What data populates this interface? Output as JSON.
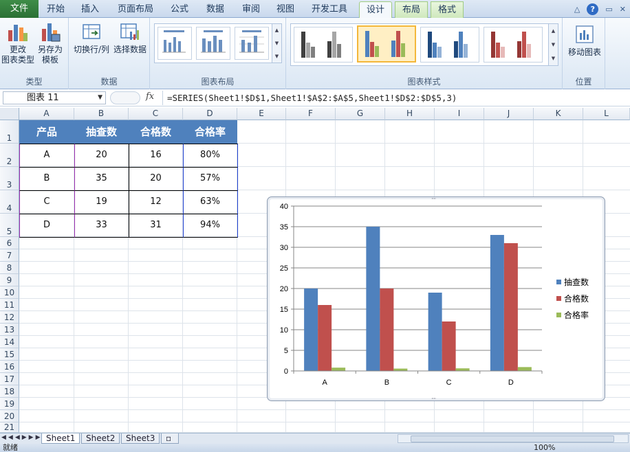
{
  "tabs": [
    {
      "label": "文件",
      "name": "tab-file"
    },
    {
      "label": "开始",
      "name": "tab-home"
    },
    {
      "label": "插入",
      "name": "tab-insert"
    },
    {
      "label": "页面布局",
      "name": "tab-page-layout"
    },
    {
      "label": "公式",
      "name": "tab-formulas"
    },
    {
      "label": "数据",
      "name": "tab-data"
    },
    {
      "label": "审阅",
      "name": "tab-review"
    },
    {
      "label": "视图",
      "name": "tab-view"
    },
    {
      "label": "开发工具",
      "name": "tab-developer"
    },
    {
      "label": "设计",
      "name": "tab-design"
    },
    {
      "label": "布局",
      "name": "tab-layout"
    },
    {
      "label": "格式",
      "name": "tab-format"
    }
  ],
  "ribbon": {
    "groups": {
      "type": "类型",
      "data": "数据",
      "layouts": "图表布局",
      "styles": "图表样式",
      "location": "位置"
    },
    "buttons": {
      "change_type_line1": "更改",
      "change_type_line2": "图表类型",
      "save_template_line1": "另存为",
      "save_template_line2": "模板",
      "switch_row_col": "切换行/列",
      "select_data": "选择数据",
      "move_chart": "移动图表"
    }
  },
  "formula_bar": {
    "name_box": "图表 11",
    "fx": "fx",
    "formula": "=SERIES(Sheet1!$D$1,Sheet1!$A$2:$A$5,Sheet1!$D$2:$D$5,3)"
  },
  "columns": [
    "A",
    "B",
    "C",
    "D",
    "E",
    "F",
    "G",
    "H",
    "I",
    "J",
    "K",
    "L"
  ],
  "rows": [
    "1",
    "2",
    "3",
    "4",
    "5",
    "6",
    "7",
    "8",
    "9",
    "10",
    "11",
    "12",
    "13",
    "14",
    "15",
    "16",
    "17",
    "18",
    "19",
    "20",
    "21"
  ],
  "table": {
    "headers": [
      "产品",
      "抽查数",
      "合格数",
      "合格率"
    ],
    "rows": [
      [
        "A",
        "20",
        "16",
        "80%"
      ],
      [
        "B",
        "35",
        "20",
        "57%"
      ],
      [
        "C",
        "19",
        "12",
        "63%"
      ],
      [
        "D",
        "33",
        "31",
        "94%"
      ]
    ]
  },
  "chart_data": {
    "type": "bar",
    "categories": [
      "A",
      "B",
      "C",
      "D"
    ],
    "series": [
      {
        "name": "抽查数",
        "values": [
          20,
          35,
          19,
          33
        ],
        "color": "#4f81bd"
      },
      {
        "name": "合格数",
        "values": [
          16,
          20,
          12,
          31
        ],
        "color": "#c0504d"
      },
      {
        "name": "合格率",
        "values": [
          0.8,
          0.57,
          0.63,
          0.94
        ],
        "color": "#9bbb59"
      }
    ],
    "yticks": [
      "0",
      "5",
      "10",
      "15",
      "20",
      "25",
      "30",
      "35",
      "40"
    ],
    "ylim": [
      0,
      40
    ],
    "grid": true,
    "legend_position": "right"
  },
  "sheets": [
    "Sheet1",
    "Sheet2",
    "Sheet3"
  ],
  "status": {
    "ready": "就绪",
    "zoom": "100%"
  }
}
